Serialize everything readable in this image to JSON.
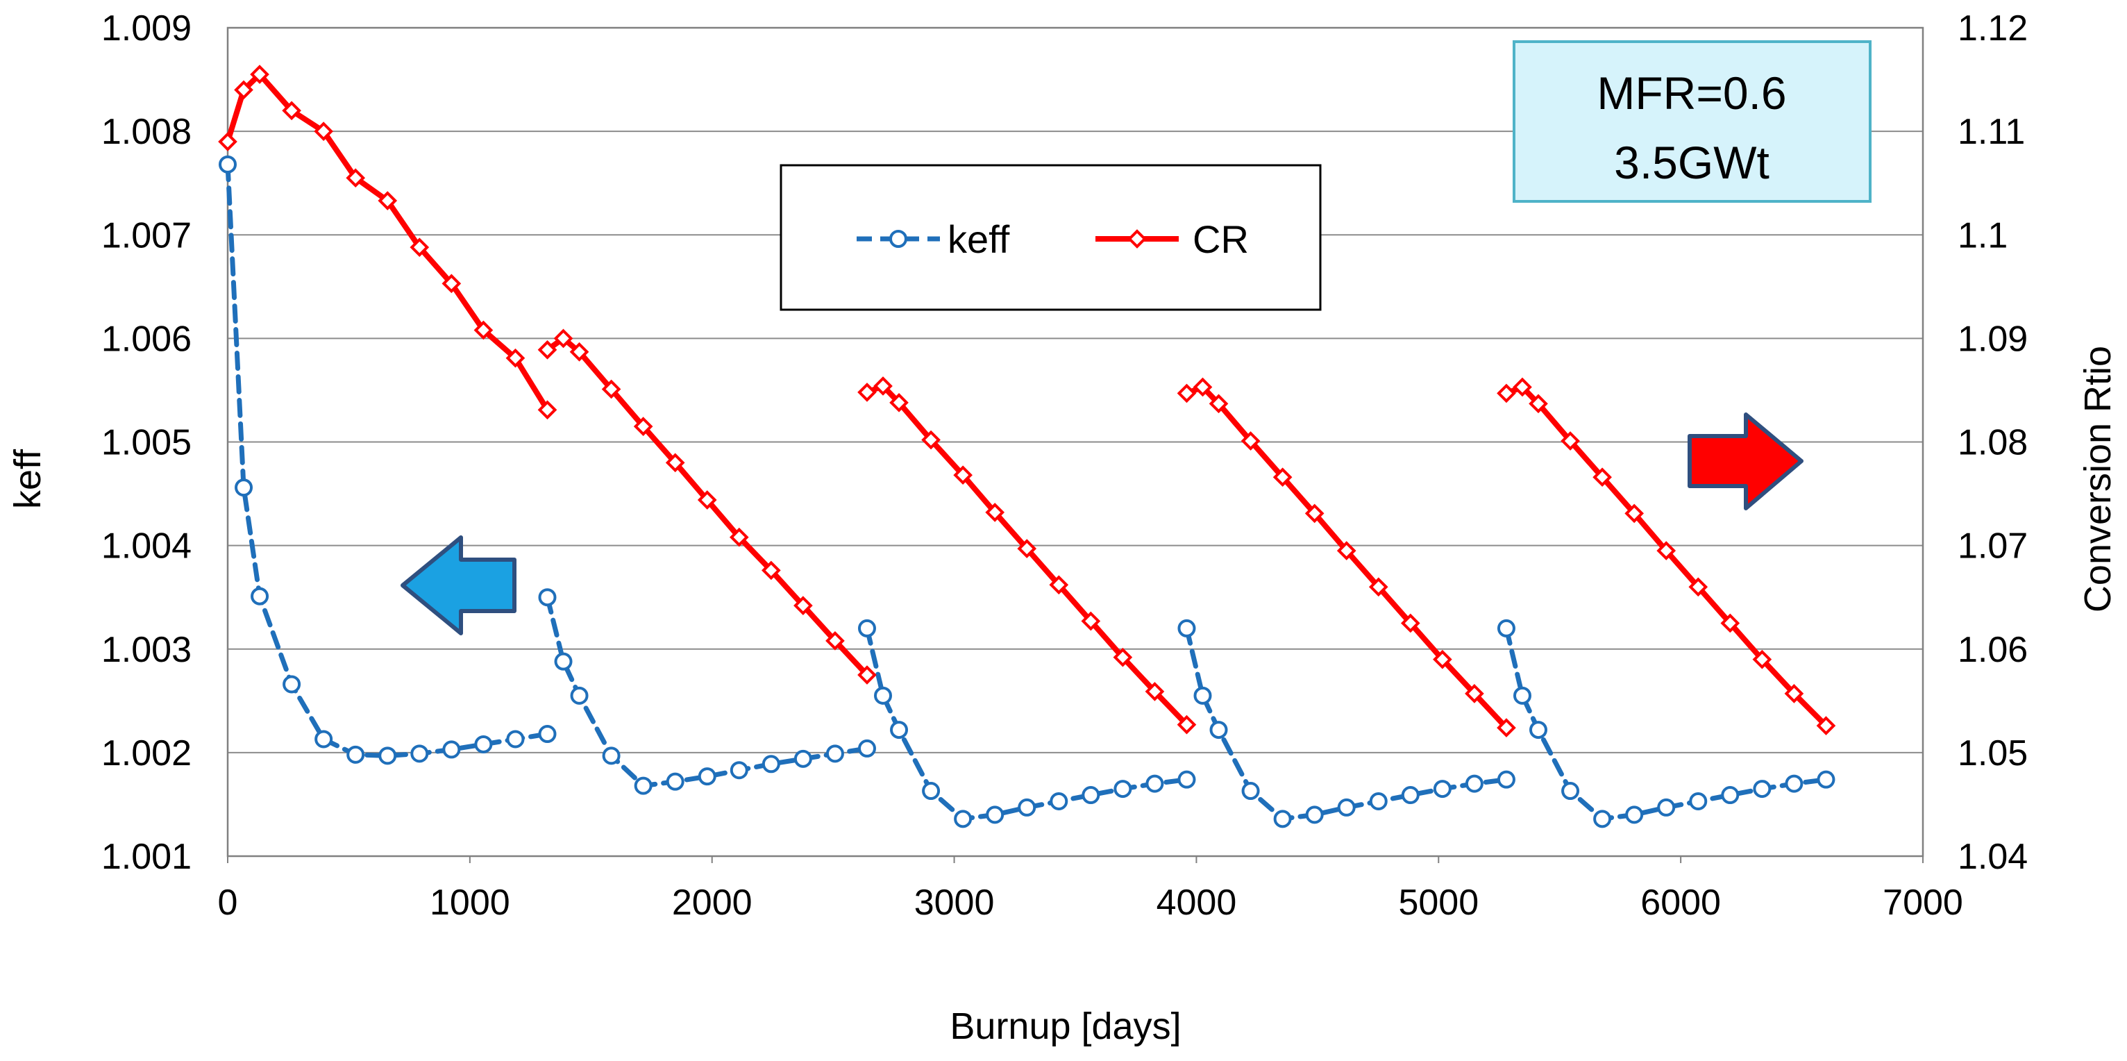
{
  "chart_data": {
    "type": "line",
    "xlabel": "Burnup [days]",
    "ylabel": "keff",
    "y2label": "Conversion Rtio",
    "xlim": [
      0,
      7000
    ],
    "ylim": [
      1.001,
      1.009
    ],
    "y2lim": [
      1.04,
      1.12
    ],
    "xticks": [
      "0",
      "1000",
      "2000",
      "3000",
      "4000",
      "5000",
      "6000",
      "7000"
    ],
    "yticks": [
      "1.001",
      "1.002",
      "1.003",
      "1.004",
      "1.005",
      "1.006",
      "1.007",
      "1.008",
      "1.009"
    ],
    "y2ticks": [
      "1.04",
      "1.05",
      "1.06",
      "1.07",
      "1.08",
      "1.09",
      "1.1",
      "1.11",
      "1.12"
    ],
    "grid": true,
    "legend": [
      "keff",
      "CR"
    ],
    "legend_placement": "top-center",
    "annotation": [
      "MFR=0.6",
      "3.5GWt"
    ],
    "arrows": [
      {
        "direction": "left",
        "meaning": "keff axis",
        "color": "#1ba1e2"
      },
      {
        "direction": "right",
        "meaning": "Conversion Rtio axis",
        "color": "#ff0000"
      }
    ],
    "series": [
      {
        "name": "keff",
        "axis": "left",
        "color": "#1f6fba",
        "marker": "circle",
        "dash": true,
        "segments": [
          {
            "x": [
              0,
              66,
              132,
              264,
              396,
              528,
              660,
              792,
              924,
              1056,
              1188,
              1320
            ],
            "y": [
              1.00768,
              1.00456,
              1.00351,
              1.00266,
              1.00213,
              1.00198,
              1.00197,
              1.00199,
              1.00203,
              1.00208,
              1.00213,
              1.00218
            ]
          },
          {
            "x": [
              1320,
              1386,
              1452,
              1584,
              1716,
              1848,
              1980,
              2112,
              2244,
              2376,
              2508,
              2640
            ],
            "y": [
              1.0035,
              1.00288,
              1.00255,
              1.00197,
              1.00168,
              1.00172,
              1.00177,
              1.00183,
              1.00189,
              1.00194,
              1.00199,
              1.00204
            ]
          },
          {
            "x": [
              2640,
              2706,
              2772,
              2904,
              3036,
              3168,
              3300,
              3432,
              3564,
              3696,
              3828,
              3960
            ],
            "y": [
              1.0032,
              1.00255,
              1.00222,
              1.00163,
              1.00136,
              1.0014,
              1.00147,
              1.00153,
              1.00159,
              1.00165,
              1.0017,
              1.00174
            ]
          },
          {
            "x": [
              3960,
              4026,
              4092,
              4224,
              4356,
              4488,
              4620,
              4752,
              4884,
              5016,
              5148,
              5280
            ],
            "y": [
              1.0032,
              1.00255,
              1.00222,
              1.00163,
              1.00136,
              1.0014,
              1.00147,
              1.00153,
              1.00159,
              1.00165,
              1.0017,
              1.00174
            ]
          },
          {
            "x": [
              5280,
              5346,
              5412,
              5544,
              5676,
              5808,
              5940,
              6072,
              6204,
              6336,
              6468,
              6600
            ],
            "y": [
              1.0032,
              1.00255,
              1.00222,
              1.00163,
              1.00136,
              1.0014,
              1.00147,
              1.00153,
              1.00159,
              1.00165,
              1.0017,
              1.00174
            ]
          }
        ]
      },
      {
        "name": "CR",
        "axis": "right",
        "color": "#ff0000",
        "marker": "diamond",
        "dash": false,
        "segments": [
          {
            "x": [
              0,
              66,
              132,
              264,
              396,
              528,
              660,
              792,
              924,
              1056,
              1188,
              1320
            ],
            "y": [
              1.109,
              1.114,
              1.1155,
              1.112,
              1.11,
              1.1055,
              1.1033,
              1.0988,
              1.0953,
              1.0908,
              1.0881,
              1.0831
            ]
          },
          {
            "x": [
              1320,
              1386,
              1452,
              1584,
              1716,
              1848,
              1980,
              2112,
              2244,
              2376,
              2508,
              2640
            ],
            "y": [
              1.0889,
              1.09,
              1.0887,
              1.0851,
              1.0815,
              1.078,
              1.0744,
              1.0708,
              1.0676,
              1.0642,
              1.0608,
              1.0575
            ]
          },
          {
            "x": [
              2640,
              2706,
              2772,
              2904,
              3036,
              3168,
              3300,
              3432,
              3564,
              3696,
              3828,
              3960
            ],
            "y": [
              1.0848,
              1.0854,
              1.0838,
              1.0802,
              1.0768,
              1.0732,
              1.0697,
              1.0662,
              1.0627,
              1.0592,
              1.0559,
              1.0527
            ]
          },
          {
            "x": [
              3960,
              4026,
              4092,
              4224,
              4356,
              4488,
              4620,
              4752,
              4884,
              5016,
              5148,
              5280
            ],
            "y": [
              1.0847,
              1.0853,
              1.0837,
              1.0801,
              1.0766,
              1.0731,
              1.0695,
              1.066,
              1.0625,
              1.059,
              1.0557,
              1.0524
            ]
          },
          {
            "x": [
              5280,
              5346,
              5412,
              5544,
              5676,
              5808,
              5940,
              6072,
              6204,
              6336,
              6468,
              6600
            ],
            "y": [
              1.0847,
              1.0853,
              1.0837,
              1.0801,
              1.0766,
              1.0731,
              1.0695,
              1.066,
              1.0625,
              1.059,
              1.0557,
              1.0526
            ]
          }
        ]
      }
    ]
  }
}
